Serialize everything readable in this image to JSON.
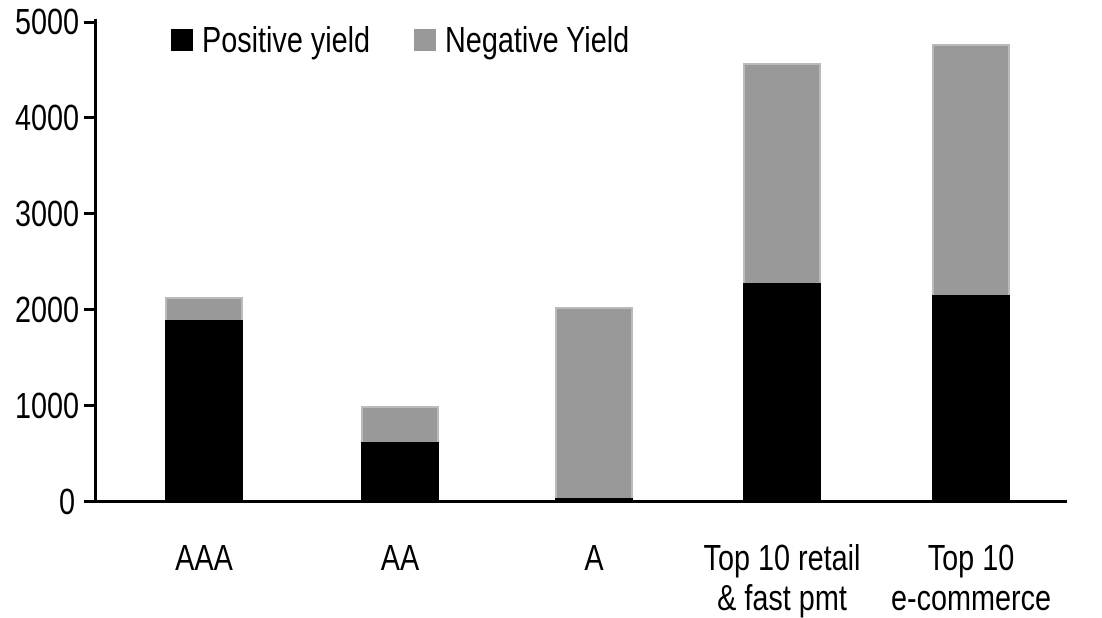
{
  "chart_data": {
    "type": "bar",
    "stacked": true,
    "categories": [
      "AAA",
      "AA",
      "A",
      "Top 10 retail\n& fast pmt",
      "Top 10\ne-commerce"
    ],
    "series": [
      {
        "name": "Positive yield",
        "color": "#000000",
        "values": [
          1890,
          620,
          40,
          2280,
          2150
        ]
      },
      {
        "name": "Negative Yield",
        "color": "#999999",
        "values": [
          240,
          380,
          1990,
          2290,
          2620
        ]
      }
    ],
    "ylim": [
      0,
      5000
    ],
    "yticks": [
      0,
      1000,
      2000,
      3000,
      4000,
      5000
    ],
    "grid": false,
    "legend_position": "top-center",
    "axis_color": "#000000",
    "background_color": "#ffffff"
  }
}
